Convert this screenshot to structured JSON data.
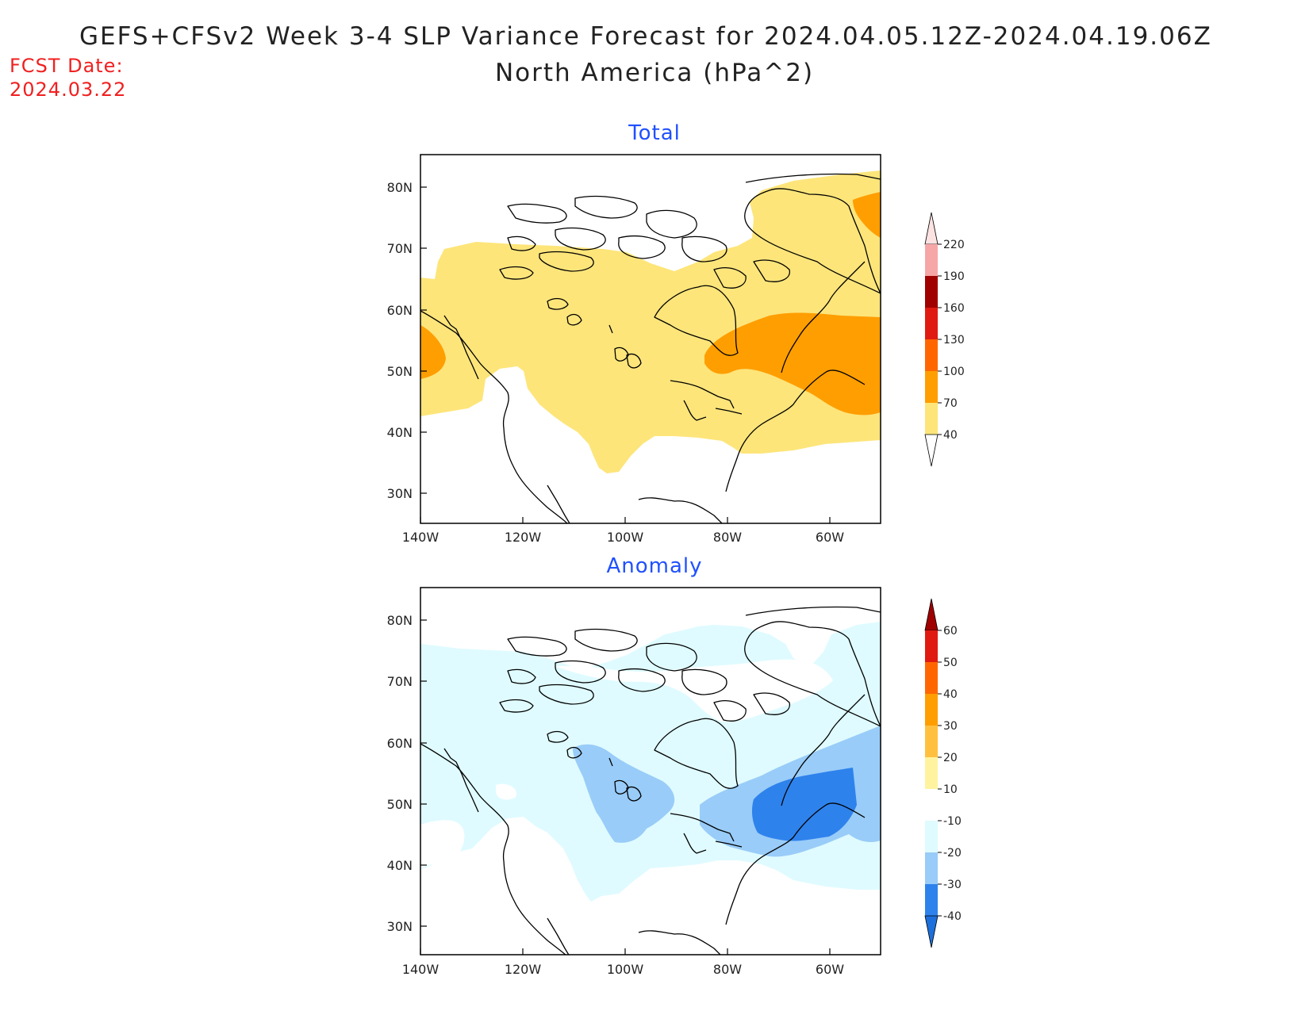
{
  "header": {
    "title": "GEFS+CFSv2 Week 3-4 SLP Variance Forecast for 2024.04.05.12Z-2024.04.19.06Z",
    "subtitle": "North America (hPa^2)",
    "fcst_label": "FCST Date:",
    "fcst_date": "2024.03.22"
  },
  "map_axes": {
    "lat_labels": [
      "80N",
      "70N",
      "60N",
      "50N",
      "40N",
      "30N"
    ],
    "lon_labels": [
      "140W",
      "120W",
      "100W",
      "80W",
      "60W"
    ]
  },
  "panels": [
    {
      "title": "Total",
      "colorbar": {
        "labels": [
          "220",
          "190",
          "160",
          "130",
          "100",
          "70",
          "40"
        ],
        "colors": [
          "#fde2e2",
          "#f6a6a6",
          "#a00000",
          "#e01a10",
          "#ff6600",
          "#ff9e00",
          "#fde57a"
        ]
      }
    },
    {
      "title": "Anomaly",
      "colorbar": {
        "labels": [
          "60",
          "50",
          "40",
          "30",
          "20",
          "10",
          "-10",
          "-20",
          "-30",
          "-40"
        ],
        "colors": [
          "#a00000",
          "#e01a10",
          "#ff6600",
          "#ff9e00",
          "#ffc040",
          "#fff3a0",
          "#ffffff",
          "#dffbff",
          "#99ccf8",
          "#2e82ec",
          "#1d6fdc"
        ]
      }
    }
  ],
  "colors": {
    "total_light": "#fde57a",
    "total_orange": "#ff9e00",
    "anom_light": "#dffbff",
    "anom_mid": "#99ccf8",
    "anom_dark": "#2e82ec"
  }
}
